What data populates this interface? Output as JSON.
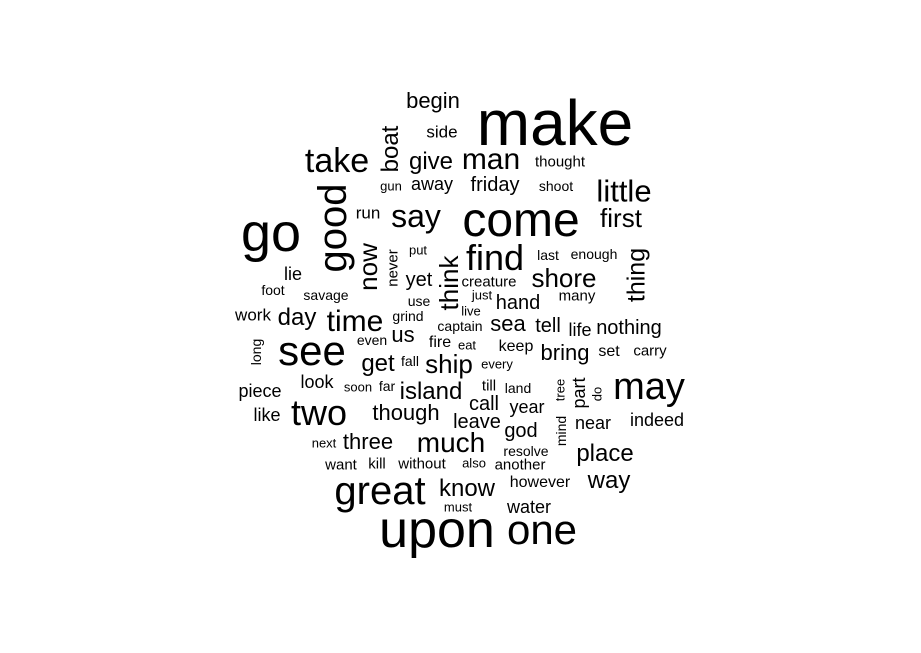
{
  "word_cloud": {
    "words": [
      {
        "text": "make"
      },
      {
        "text": "upon"
      },
      {
        "text": "come"
      },
      {
        "text": "go"
      },
      {
        "text": "one"
      },
      {
        "text": "great"
      },
      {
        "text": "see"
      },
      {
        "text": "may"
      },
      {
        "text": "good"
      },
      {
        "text": "two"
      },
      {
        "text": "find"
      },
      {
        "text": "take"
      },
      {
        "text": "time"
      },
      {
        "text": "say"
      },
      {
        "text": "little"
      },
      {
        "text": "man"
      },
      {
        "text": "much"
      },
      {
        "text": "shore"
      },
      {
        "text": "think"
      },
      {
        "text": "now"
      },
      {
        "text": "ship"
      },
      {
        "text": "first"
      },
      {
        "text": "thing"
      },
      {
        "text": "place"
      },
      {
        "text": "boat"
      },
      {
        "text": "island"
      },
      {
        "text": "know"
      },
      {
        "text": "day"
      },
      {
        "text": "way"
      },
      {
        "text": "get"
      },
      {
        "text": "give"
      },
      {
        "text": "though"
      },
      {
        "text": "three"
      },
      {
        "text": "friday"
      },
      {
        "text": "begin"
      },
      {
        "text": "sea"
      },
      {
        "text": "bring"
      },
      {
        "text": "us"
      },
      {
        "text": "hand"
      },
      {
        "text": "tell"
      },
      {
        "text": "yet"
      },
      {
        "text": "god"
      },
      {
        "text": "leave"
      },
      {
        "text": "nothing"
      },
      {
        "text": "life"
      },
      {
        "text": "year"
      },
      {
        "text": "call"
      },
      {
        "text": "look"
      },
      {
        "text": "near"
      },
      {
        "text": "indeed"
      },
      {
        "text": "piece"
      },
      {
        "text": "lie"
      },
      {
        "text": "work"
      },
      {
        "text": "like"
      },
      {
        "text": "away"
      },
      {
        "text": "side"
      },
      {
        "text": "run"
      },
      {
        "text": "water"
      },
      {
        "text": "however"
      },
      {
        "text": "carry"
      },
      {
        "text": "part"
      },
      {
        "text": "keep"
      },
      {
        "text": "set"
      },
      {
        "text": "never"
      },
      {
        "text": "many"
      },
      {
        "text": "thought"
      },
      {
        "text": "shoot"
      },
      {
        "text": "enough"
      },
      {
        "text": "last"
      },
      {
        "text": "captain"
      },
      {
        "text": "creature"
      },
      {
        "text": "another"
      },
      {
        "text": "without"
      },
      {
        "text": "kill"
      },
      {
        "text": "want"
      },
      {
        "text": "resolve"
      },
      {
        "text": "fire"
      },
      {
        "text": "long"
      },
      {
        "text": "foot"
      },
      {
        "text": "savage"
      },
      {
        "text": "put"
      },
      {
        "text": "use"
      },
      {
        "text": "just"
      },
      {
        "text": "live"
      },
      {
        "text": "grind"
      },
      {
        "text": "even"
      },
      {
        "text": "eat"
      },
      {
        "text": "fall"
      },
      {
        "text": "every"
      },
      {
        "text": "soon"
      },
      {
        "text": "far"
      },
      {
        "text": "till"
      },
      {
        "text": "land"
      },
      {
        "text": "tree"
      },
      {
        "text": "do"
      },
      {
        "text": "mind"
      },
      {
        "text": "next"
      },
      {
        "text": "also"
      },
      {
        "text": "must"
      },
      {
        "text": "gun"
      }
    ]
  }
}
